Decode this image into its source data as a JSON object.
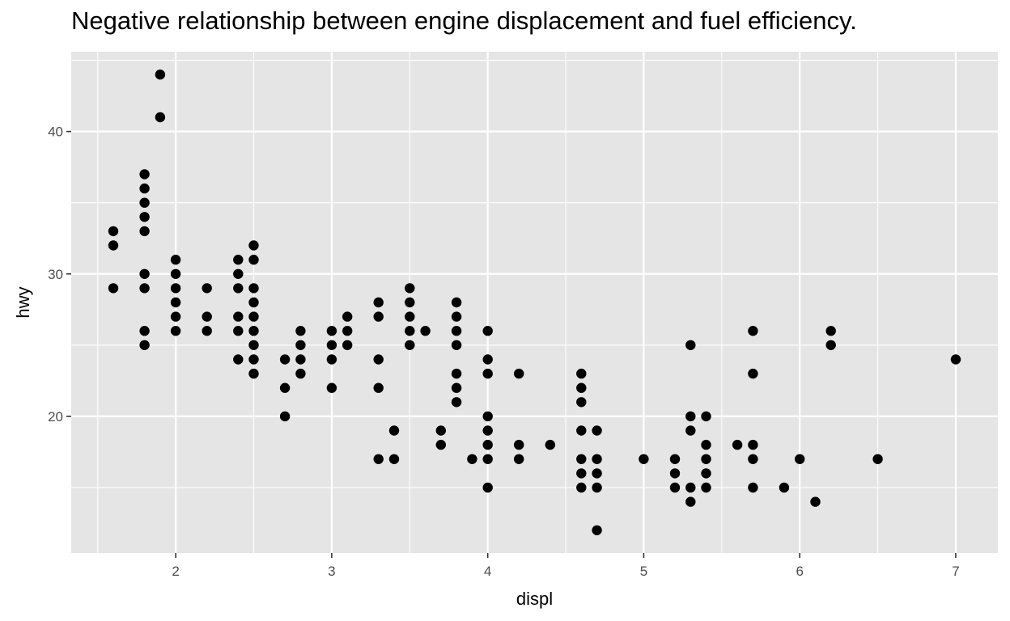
{
  "chart_data": {
    "type": "scatter",
    "title": "Negative relationship between engine displacement and fuel efficiency.",
    "xlabel": "displ",
    "ylabel": "hwy",
    "xlim": [
      1.33,
      7.27
    ],
    "ylim": [
      10.4,
      45.6
    ],
    "xticks": [
      2,
      3,
      4,
      5,
      6,
      7
    ],
    "yticks": [
      20,
      30,
      40
    ],
    "grid": true,
    "colors": {
      "panel": "#e5e5e5",
      "grid": "#ffffff",
      "point": "#000000",
      "tick_text": "#4d4d4d",
      "tick_mark": "#333333"
    },
    "points": [
      [
        1.6,
        33
      ],
      [
        1.6,
        32
      ],
      [
        1.6,
        29
      ],
      [
        1.8,
        37
      ],
      [
        1.8,
        36
      ],
      [
        1.8,
        35
      ],
      [
        1.8,
        34
      ],
      [
        1.8,
        33
      ],
      [
        1.8,
        30
      ],
      [
        1.8,
        29
      ],
      [
        1.8,
        26
      ],
      [
        1.8,
        25
      ],
      [
        1.9,
        44
      ],
      [
        1.9,
        41
      ],
      [
        2.0,
        31
      ],
      [
        2.0,
        30
      ],
      [
        2.0,
        29
      ],
      [
        2.0,
        28
      ],
      [
        2.0,
        27
      ],
      [
        2.0,
        26
      ],
      [
        2.2,
        29
      ],
      [
        2.2,
        27
      ],
      [
        2.2,
        26
      ],
      [
        2.4,
        31
      ],
      [
        2.4,
        30
      ],
      [
        2.4,
        29
      ],
      [
        2.4,
        27
      ],
      [
        2.4,
        26
      ],
      [
        2.4,
        24
      ],
      [
        2.5,
        32
      ],
      [
        2.5,
        31
      ],
      [
        2.5,
        29
      ],
      [
        2.5,
        28
      ],
      [
        2.5,
        27
      ],
      [
        2.5,
        26
      ],
      [
        2.5,
        25
      ],
      [
        2.5,
        24
      ],
      [
        2.5,
        23
      ],
      [
        2.7,
        24
      ],
      [
        2.7,
        22
      ],
      [
        2.7,
        20
      ],
      [
        2.8,
        26
      ],
      [
        2.8,
        25
      ],
      [
        2.8,
        24
      ],
      [
        2.8,
        23
      ],
      [
        3.0,
        26
      ],
      [
        3.0,
        25
      ],
      [
        3.0,
        24
      ],
      [
        3.0,
        22
      ],
      [
        3.1,
        27
      ],
      [
        3.1,
        26
      ],
      [
        3.1,
        25
      ],
      [
        3.3,
        28
      ],
      [
        3.3,
        27
      ],
      [
        3.3,
        24
      ],
      [
        3.3,
        22
      ],
      [
        3.3,
        17
      ],
      [
        3.4,
        19
      ],
      [
        3.4,
        17
      ],
      [
        3.5,
        29
      ],
      [
        3.5,
        28
      ],
      [
        3.5,
        27
      ],
      [
        3.5,
        26
      ],
      [
        3.5,
        25
      ],
      [
        3.6,
        26
      ],
      [
        3.7,
        19
      ],
      [
        3.7,
        18
      ],
      [
        3.8,
        28
      ],
      [
        3.8,
        27
      ],
      [
        3.8,
        26
      ],
      [
        3.8,
        25
      ],
      [
        3.8,
        23
      ],
      [
        3.8,
        22
      ],
      [
        3.8,
        21
      ],
      [
        3.9,
        17
      ],
      [
        4.0,
        26
      ],
      [
        4.0,
        24
      ],
      [
        4.0,
        23
      ],
      [
        4.0,
        20
      ],
      [
        4.0,
        19
      ],
      [
        4.0,
        18
      ],
      [
        4.0,
        17
      ],
      [
        4.0,
        15
      ],
      [
        4.2,
        23
      ],
      [
        4.2,
        18
      ],
      [
        4.2,
        17
      ],
      [
        4.4,
        18
      ],
      [
        4.6,
        23
      ],
      [
        4.6,
        22
      ],
      [
        4.6,
        21
      ],
      [
        4.6,
        19
      ],
      [
        4.6,
        17
      ],
      [
        4.6,
        16
      ],
      [
        4.6,
        15
      ],
      [
        4.7,
        19
      ],
      [
        4.7,
        17
      ],
      [
        4.7,
        16
      ],
      [
        4.7,
        15
      ],
      [
        4.7,
        12
      ],
      [
        5.0,
        17
      ],
      [
        5.2,
        17
      ],
      [
        5.2,
        16
      ],
      [
        5.2,
        15
      ],
      [
        5.3,
        25
      ],
      [
        5.3,
        20
      ],
      [
        5.3,
        19
      ],
      [
        5.3,
        15
      ],
      [
        5.3,
        14
      ],
      [
        5.4,
        20
      ],
      [
        5.4,
        18
      ],
      [
        5.4,
        17
      ],
      [
        5.4,
        16
      ],
      [
        5.4,
        15
      ],
      [
        5.6,
        18
      ],
      [
        5.7,
        26
      ],
      [
        5.7,
        23
      ],
      [
        5.7,
        18
      ],
      [
        5.7,
        17
      ],
      [
        5.7,
        15
      ],
      [
        5.9,
        15
      ],
      [
        6.0,
        17
      ],
      [
        6.1,
        14
      ],
      [
        6.2,
        26
      ],
      [
        6.2,
        25
      ],
      [
        6.5,
        17
      ],
      [
        7.0,
        24
      ]
    ]
  }
}
